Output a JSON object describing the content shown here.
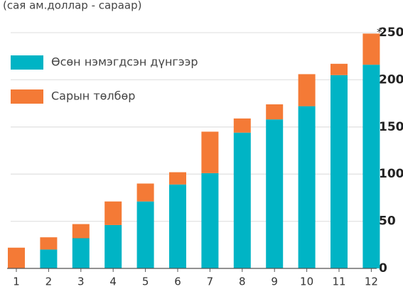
{
  "chart_data": {
    "type": "stacked_bar",
    "title": "(сая ам.доллар - сараар)",
    "annotation": "*",
    "categories": [
      "1",
      "2",
      "3",
      "4",
      "5",
      "6",
      "7",
      "8",
      "9",
      "10",
      "11",
      "12"
    ],
    "series": [
      {
        "name": "Өсөн нэмэгдсэн дүнгээр",
        "color": "#00b4c5",
        "values": [
          0,
          20,
          32,
          46,
          71,
          89,
          101,
          144,
          158,
          172,
          205,
          216
        ]
      },
      {
        "name": "Сарын төлбөр",
        "color": "#f47a36",
        "values": [
          22,
          13,
          15,
          25,
          19,
          13,
          44,
          15,
          16,
          34,
          12,
          33
        ]
      }
    ],
    "ylim": [
      0,
      250
    ],
    "yticks": [
      0,
      50,
      100,
      150,
      200,
      250
    ],
    "grid": true,
    "y_axis_side": "right"
  }
}
